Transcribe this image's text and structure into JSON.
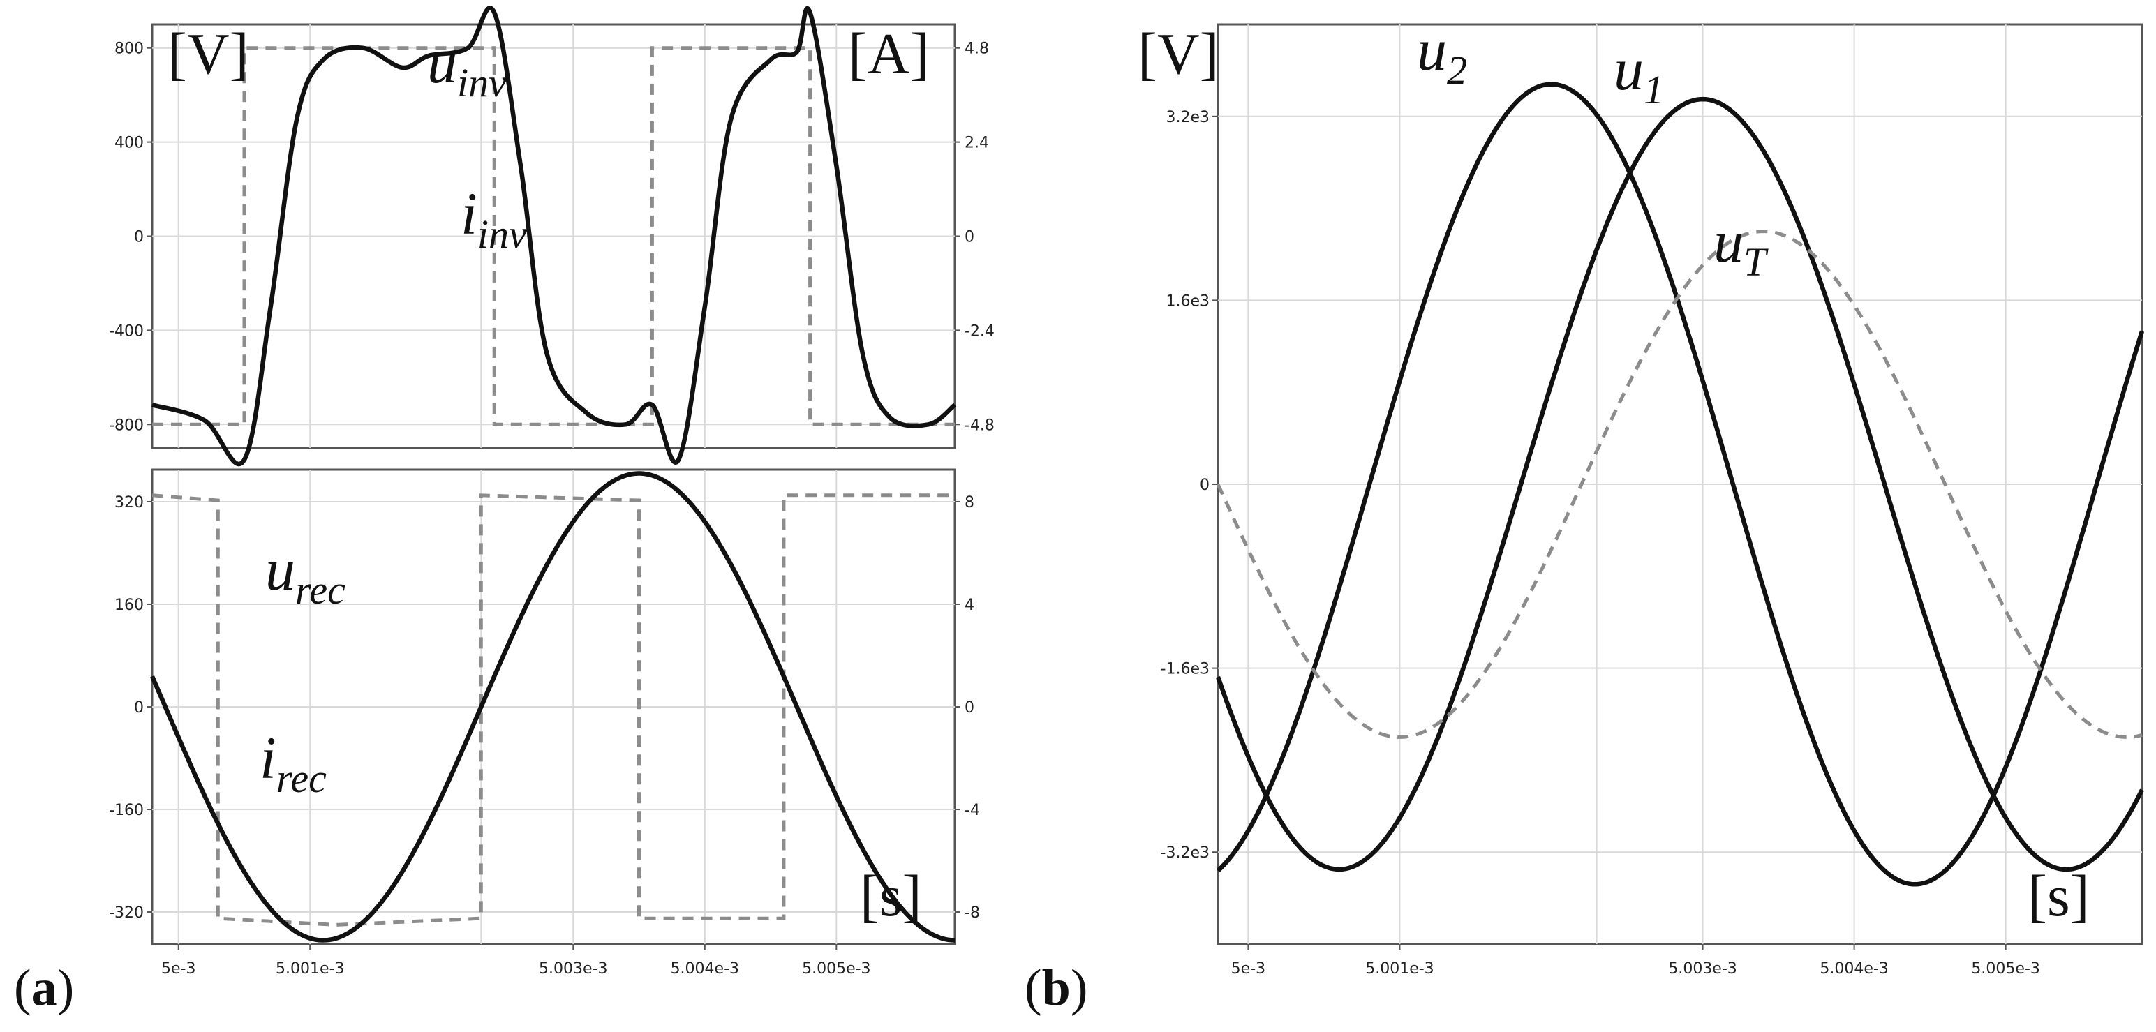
{
  "panel_labels": [
    {
      "open": "(",
      "letter": "a",
      "close": ")"
    },
    {
      "open": "(",
      "letter": "b",
      "close": ")"
    }
  ],
  "colors": {
    "solid": "#111111",
    "dashed": "#8c8c8c",
    "grid": "#d9d9d9"
  },
  "chart_data": [
    {
      "type": "line",
      "title": "",
      "unit_left": "[V]",
      "unit_right": "[A]",
      "xlim": [
        0.0049998,
        0.0050059
      ],
      "ylim": [
        -900,
        900
      ],
      "ylim_right": [
        -5.4,
        5.4
      ],
      "yticks": [
        -800,
        -400,
        0,
        400,
        800
      ],
      "yticks_labels": [
        "-800",
        "-400",
        "0",
        "400",
        "800"
      ],
      "yticks_right": [
        -4.8,
        -2.4,
        0,
        2.4,
        4.8
      ],
      "yticks_right_labels": [
        "-4.8",
        "-2.4",
        "0",
        "2.4",
        "4.8"
      ],
      "xgrid": [
        0.005,
        0.005001,
        0.0050023,
        0.005003,
        0.005004,
        0.005005
      ],
      "grid": true,
      "series": [
        {
          "name": "u",
          "sub": "inv",
          "style": "dashed",
          "axis": "left",
          "x": [
            0.0049998,
            0.0050005,
            0.0050005,
            0.0050024,
            0.0050024,
            0.0050036,
            0.0050036,
            0.0050048,
            0.0050048,
            0.0050059
          ],
          "y": [
            -800,
            -800,
            800,
            800,
            -800,
            -800,
            800,
            800,
            -800,
            -800
          ]
        },
        {
          "name": "i",
          "sub": "inv",
          "style": "solid",
          "axis": "right",
          "x": [
            0.0049998,
            0.0050002,
            0.0050005,
            0.0050007,
            0.0050009,
            0.0050011,
            0.0050014,
            0.0050017,
            0.0050019,
            0.0050022,
            0.0050024,
            0.0050026,
            0.0050028,
            0.0050031,
            0.0050034,
            0.0050036,
            0.0050038,
            0.005004,
            0.0050042,
            0.0050045,
            0.0050047,
            0.0050048,
            0.005005,
            0.0050052,
            0.0050054,
            0.0050057,
            0.0050059
          ],
          "y": [
            -4.3,
            -4.7,
            -5.7,
            -1.8,
            3.0,
            4.5,
            4.8,
            4.3,
            4.6,
            4.8,
            5.7,
            1.8,
            -3.0,
            -4.5,
            -4.8,
            -4.3,
            -5.7,
            -1.8,
            3.0,
            4.5,
            4.7,
            5.7,
            1.8,
            -3.0,
            -4.6,
            -4.8,
            -4.3
          ]
        }
      ],
      "labels": [
        {
          "main": "u",
          "sub": "inv"
        },
        {
          "main": "i",
          "sub": "inv"
        }
      ]
    },
    {
      "type": "line",
      "title": "",
      "unit_x": "[s]",
      "xlim": [
        0.0049998,
        0.0050059
      ],
      "ylim": [
        -370,
        370
      ],
      "ylim_right": [
        -9.25,
        9.25
      ],
      "yticks": [
        -320,
        -160,
        0,
        160,
        320
      ],
      "yticks_labels": [
        "-320",
        "-160",
        "0",
        "160",
        "320"
      ],
      "yticks_right": [
        -8,
        -4,
        0,
        4,
        8
      ],
      "yticks_right_labels": [
        "-8",
        "-4",
        "0",
        "4",
        "8"
      ],
      "xticks": [
        0.005,
        0.005001,
        0.005003,
        0.005004,
        0.005005
      ],
      "xticks_labels": [
        "5e-3",
        "5.001e-3",
        "5.003e-3",
        "5.004e-3",
        "5.005e-3"
      ],
      "xgrid": [
        0.005,
        0.005001,
        0.0050023,
        0.005003,
        0.005004,
        0.005005
      ],
      "grid": true,
      "series": [
        {
          "name": "u",
          "sub": "rec",
          "style": "dashed",
          "axis": "left",
          "x": [
            0.0049998,
            0.0050003,
            0.0050003,
            0.0050012,
            0.0050023,
            0.0050023,
            0.0050035,
            0.0050035,
            0.0050046,
            0.0050046,
            0.0050059
          ],
          "y": [
            330,
            322,
            -330,
            -340,
            -330,
            330,
            322,
            -330,
            -330,
            330,
            330
          ]
        },
        {
          "name": "i",
          "sub": "rec",
          "style": "solid",
          "axis": "right",
          "period": 4.8e-06,
          "phase_zero": 0.0050023,
          "amplitude": 9.1
        }
      ],
      "labels": [
        {
          "main": "u",
          "sub": "rec"
        },
        {
          "main": "i",
          "sub": "rec"
        }
      ]
    },
    {
      "type": "line",
      "title": "",
      "unit_left": "[V]",
      "unit_x": "[s]",
      "xlim": [
        0.0049998,
        0.0050059
      ],
      "ylim": [
        -4000,
        4000
      ],
      "yticks": [
        -3200,
        -1600,
        0,
        1600,
        3200
      ],
      "yticks_labels": [
        "-3.2e3",
        "-1.6e3",
        "0",
        "1.6e3",
        "3.2e3"
      ],
      "xticks": [
        0.005,
        0.005001,
        0.005003,
        0.005004,
        0.005005
      ],
      "xticks_labels": [
        "5e-3",
        "5.001e-3",
        "5.003e-3",
        "5.004e-3",
        "5.005e-3"
      ],
      "xgrid": [
        0.005,
        0.005001,
        0.0050023,
        0.005003,
        0.005004,
        0.005005
      ],
      "grid": true,
      "series": [
        {
          "name": "u",
          "sub": "2",
          "style": "solid",
          "period": 4.8e-06,
          "peak_time": 0.005002,
          "amplitude": 3480
        },
        {
          "name": "u",
          "sub": "1",
          "style": "solid",
          "period": 4.8e-06,
          "peak_time": 0.005003,
          "amplitude": 3350
        },
        {
          "name": "u",
          "sub": "T",
          "style": "dashed",
          "period": 4.8e-06,
          "peak_time": 0.0050034,
          "amplitude": 2200
        }
      ],
      "labels": [
        {
          "main": "u",
          "sub": "2"
        },
        {
          "main": "u",
          "sub": "1"
        },
        {
          "main": "u",
          "sub": "T"
        }
      ]
    }
  ]
}
